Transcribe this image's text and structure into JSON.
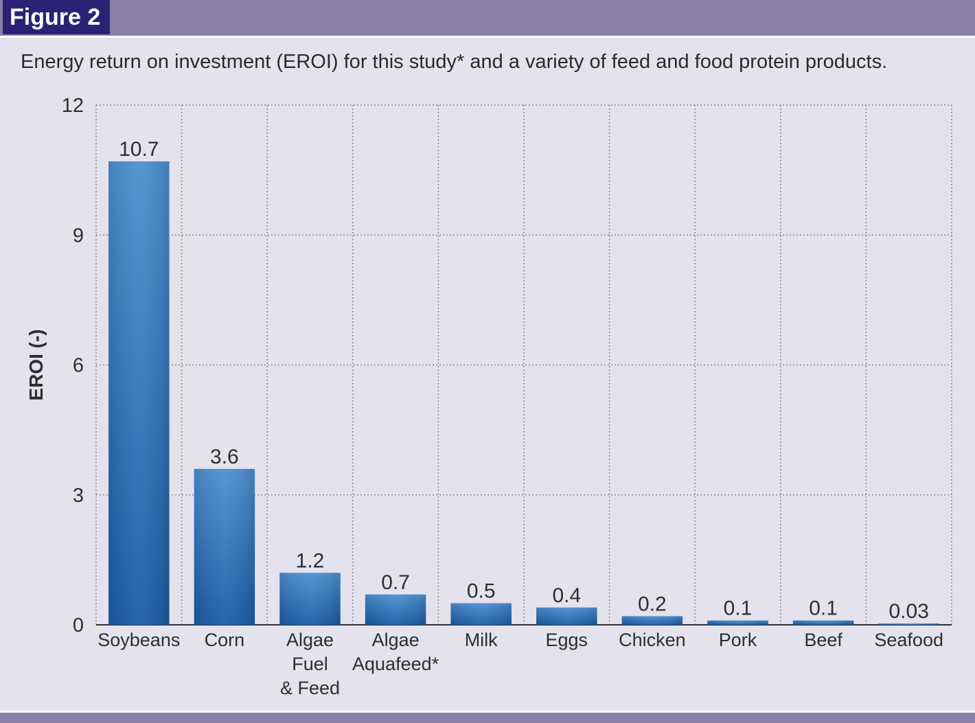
{
  "figure_label": "Figure 2",
  "colors": {
    "header_band": "#8b80aa",
    "figure_label_bg": "#2b2275",
    "background": "#e4e2ec",
    "bar_top": "#4a8fd0",
    "bar_bottom": "#1a5aa6",
    "grid": "#8a8a8a"
  },
  "chart_data": {
    "type": "bar",
    "title": "Energy return on investment (EROI) for this study* and a variety of feed and food protein products.",
    "ylabel": "EROI (-)",
    "xlabel": "",
    "ylim": [
      0,
      12
    ],
    "yticks": [
      0,
      3,
      6,
      9,
      12
    ],
    "grid": true,
    "categories": [
      [
        "Soybeans"
      ],
      [
        "Corn"
      ],
      [
        "Algae",
        "Fuel",
        "& Feed"
      ],
      [
        "Algae",
        "Aquafeed*"
      ],
      [
        "Milk"
      ],
      [
        "Eggs"
      ],
      [
        "Chicken"
      ],
      [
        "Pork"
      ],
      [
        "Beef"
      ],
      [
        "Seafood"
      ]
    ],
    "values": [
      10.7,
      3.6,
      1.2,
      0.7,
      0.5,
      0.4,
      0.2,
      0.1,
      0.1,
      0.03
    ],
    "value_labels": [
      "10.7",
      "3.6",
      "1.2",
      "0.7",
      "0.5",
      "0.4",
      "0.2",
      "0.1",
      "0.1",
      "0.03"
    ]
  }
}
